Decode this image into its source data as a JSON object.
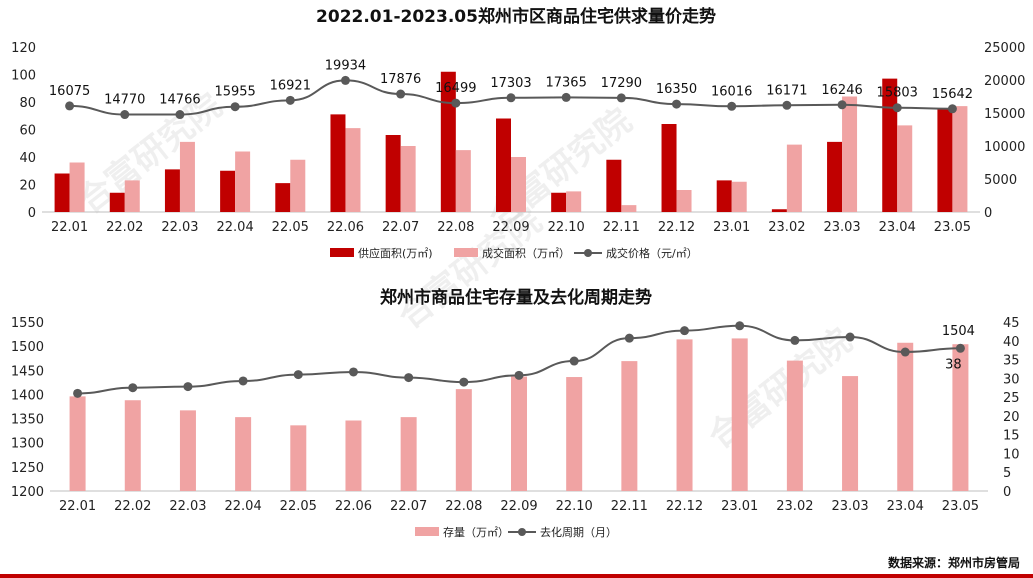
{
  "source": "数据来源：郑州市房管局",
  "watermark": "合富研究院",
  "colors": {
    "supply": "#c00000",
    "deal": "#f0a3a3",
    "line": "#595959",
    "stock": "#f0a3a3",
    "bottom_bar": "#c00000"
  },
  "chart_data": [
    {
      "type": "bar+line",
      "title": "2022.01-2023.05郑州市区商品住宅供求量价走势",
      "categories": [
        "22.01",
        "22.02",
        "22.03",
        "22.04",
        "22.05",
        "22.06",
        "22.07",
        "22.08",
        "22.09",
        "22.10",
        "22.11",
        "22.12",
        "23.01",
        "23.02",
        "23.03",
        "23.04",
        "23.05"
      ],
      "left_axis": {
        "ylim": [
          0,
          120
        ],
        "ticks": [
          "0",
          "20",
          "40",
          "60",
          "80",
          "100",
          "120"
        ]
      },
      "right_axis": {
        "ylim": [
          0,
          25000
        ],
        "ticks": [
          "0",
          "5000",
          "10000",
          "15000",
          "20000",
          "25000"
        ]
      },
      "series": [
        {
          "name": "供应面积(万㎡)",
          "type": "bar",
          "axis": "left",
          "values": [
            28,
            14,
            31,
            30,
            21,
            71,
            56,
            102,
            68,
            14,
            38,
            64,
            23,
            2,
            51,
            97,
            75
          ]
        },
        {
          "name": "成交面积（万㎡）",
          "type": "bar",
          "axis": "left",
          "values": [
            36,
            23,
            51,
            44,
            38,
            61,
            48,
            45,
            40,
            15,
            5,
            16,
            22,
            49,
            84,
            63,
            77
          ]
        },
        {
          "name": "成交价格（元/㎡）",
          "type": "line",
          "axis": "right",
          "values": [
            16075,
            14770,
            14766,
            15955,
            16921,
            19934,
            17876,
            16499,
            17303,
            17365,
            17290,
            16350,
            16016,
            16171,
            16246,
            15803,
            15642
          ],
          "labels": [
            "16075",
            "14770",
            "14766",
            "15955",
            "16921",
            "19934",
            "17876",
            "16499",
            "17303",
            "17365",
            "17290",
            "16350",
            "16016",
            "16171",
            "16246",
            "15803",
            "15642"
          ]
        }
      ],
      "legend_position": "bottom"
    },
    {
      "type": "bar+line",
      "title": "郑州市商品住宅存量及去化周期走势",
      "categories": [
        "22.01",
        "22.02",
        "22.03",
        "22.04",
        "22.05",
        "22.06",
        "22.07",
        "22.08",
        "22.09",
        "22.10",
        "22.11",
        "22.12",
        "23.01",
        "23.02",
        "23.03",
        "23.04",
        "23.05"
      ],
      "left_axis": {
        "ylim": [
          1200,
          1550
        ],
        "ticks": [
          "1200",
          "1250",
          "1300",
          "1350",
          "1400",
          "1450",
          "1500",
          "1550"
        ]
      },
      "right_axis": {
        "ylim": [
          0,
          45
        ],
        "ticks": [
          "0",
          "5",
          "10",
          "15",
          "20",
          "25",
          "30",
          "35",
          "40",
          "45"
        ]
      },
      "series": [
        {
          "name": "存量（万㎡）",
          "type": "bar",
          "axis": "left",
          "values": [
            1396,
            1388,
            1367,
            1353,
            1336,
            1346,
            1353,
            1411,
            1437,
            1436,
            1469,
            1514,
            1516,
            1470,
            1438,
            1507,
            1504
          ],
          "end_label": "1504"
        },
        {
          "name": "去化周期（月）",
          "type": "line",
          "axis": "right",
          "values": [
            26,
            27.5,
            27.8,
            29.3,
            31,
            31.7,
            30.2,
            29,
            30.8,
            34.6,
            40.7,
            42.7,
            44,
            40.1,
            41,
            37,
            38
          ],
          "end_label": "38"
        }
      ],
      "legend_position": "bottom"
    }
  ]
}
